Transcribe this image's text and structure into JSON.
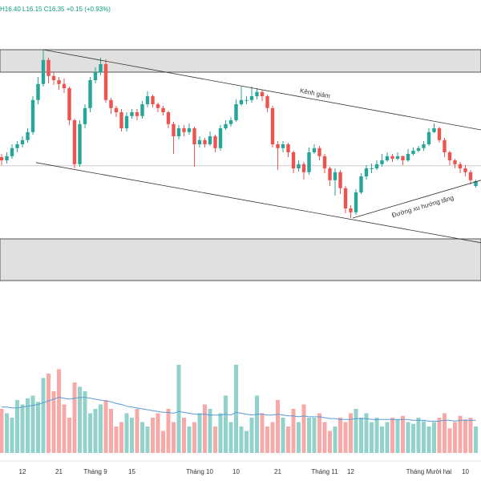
{
  "chart_data": {
    "type": "candlestick",
    "header": "H16.40 L16.15 C16.35 +0.15 (+0.93%)",
    "categories": [
      null,
      null,
      null,
      null,
      "12",
      null,
      null,
      null,
      null,
      null,
      null,
      "21",
      null,
      null,
      null,
      null,
      null,
      null,
      "Tháng 9",
      null,
      null,
      null,
      null,
      null,
      null,
      "15",
      null,
      null,
      null,
      null,
      null,
      null,
      null,
      null,
      null,
      null,
      null,
      null,
      "Tháng 10",
      null,
      null,
      null,
      null,
      null,
      null,
      "10",
      null,
      null,
      null,
      null,
      null,
      null,
      null,
      "21",
      null,
      null,
      null,
      null,
      null,
      null,
      null,
      null,
      "Tháng 11",
      null,
      null,
      null,
      null,
      "12",
      null,
      null,
      null,
      null,
      null,
      null,
      null,
      null,
      null,
      null,
      null,
      null,
      null,
      null,
      "Tháng Mười hai",
      null,
      null,
      null,
      null,
      null,
      null,
      "10",
      null,
      null
    ],
    "open": [
      17.1,
      17.0,
      17.13,
      17.38,
      17.5,
      17.63,
      17.88,
      18.88,
      19.38,
      20.13,
      19.63,
      19.5,
      19.38,
      19.25,
      18.25,
      16.88,
      18.13,
      18.63,
      19.5,
      19.75,
      20.0,
      18.88,
      18.63,
      18.5,
      18.0,
      18.38,
      18.5,
      18.38,
      18.75,
      19.0,
      18.75,
      18.63,
      18.5,
      18.13,
      17.75,
      18.0,
      17.88,
      18.0,
      17.5,
      17.63,
      17.5,
      17.75,
      17.38,
      18.0,
      18.13,
      18.25,
      18.75,
      18.88,
      18.88,
      19.0,
      19.13,
      19.0,
      18.63,
      17.5,
      17.38,
      17.5,
      17.25,
      16.75,
      16.88,
      16.63,
      17.25,
      17.38,
      17.13,
      16.75,
      16.38,
      16.63,
      16.13,
      15.5,
      15.38,
      16.0,
      16.5,
      16.75,
      16.75,
      16.88,
      17.0,
      17.13,
      17.05,
      17.13,
      17.0,
      17.2,
      17.3,
      17.38,
      17.5,
      17.88,
      18.0,
      17.63,
      17.25,
      17.0,
      16.88,
      16.75,
      16.63,
      16.2
    ],
    "high": [
      17.2,
      17.25,
      17.5,
      17.6,
      17.75,
      18.0,
      19.0,
      19.6,
      20.45,
      20.2,
      19.75,
      19.6,
      19.55,
      19.3,
      18.3,
      18.25,
      18.75,
      19.6,
      19.9,
      20.2,
      20.15,
      18.95,
      18.7,
      18.6,
      18.5,
      18.6,
      18.6,
      18.85,
      19.15,
      19.05,
      18.8,
      18.7,
      18.55,
      18.2,
      18.1,
      18.1,
      18.15,
      18.05,
      17.75,
      17.7,
      17.9,
      17.8,
      18.1,
      18.25,
      18.35,
      18.9,
      19.3,
      19.0,
      19.3,
      19.25,
      19.2,
      19.05,
      18.7,
      17.6,
      17.6,
      17.55,
      17.3,
      17.0,
      16.95,
      17.4,
      17.5,
      17.45,
      17.2,
      16.8,
      16.75,
      16.7,
      16.2,
      15.6,
      16.1,
      16.6,
      16.85,
      16.9,
      17.0,
      17.2,
      17.25,
      17.2,
      17.25,
      17.15,
      17.35,
      17.4,
      17.45,
      17.6,
      18.0,
      18.15,
      18.05,
      17.7,
      17.3,
      17.05,
      16.95,
      16.85,
      16.7,
      16.4
    ],
    "low": [
      16.85,
      16.9,
      17.05,
      17.25,
      17.4,
      17.55,
      17.8,
      18.75,
      19.3,
      19.4,
      19.35,
      19.2,
      19.1,
      18.1,
      16.75,
      16.8,
      18.0,
      18.5,
      19.4,
      19.65,
      18.8,
      18.45,
      18.35,
      17.9,
      17.9,
      18.3,
      18.25,
      18.3,
      18.65,
      18.65,
      18.5,
      18.4,
      18.0,
      17.2,
      17.65,
      17.75,
      17.8,
      16.8,
      17.4,
      17.4,
      17.45,
      17.25,
      17.3,
      17.95,
      18.05,
      18.2,
      18.7,
      18.75,
      18.8,
      18.9,
      18.85,
      18.5,
      17.4,
      16.7,
      17.25,
      17.1,
      16.6,
      16.65,
      16.4,
      16.55,
      17.2,
      17.0,
      16.6,
      16.2,
      15.9,
      15.95,
      15.35,
      15.2,
      15.3,
      15.95,
      16.4,
      16.6,
      16.7,
      16.8,
      16.95,
      16.95,
      17.0,
      16.85,
      16.95,
      17.15,
      17.25,
      17.3,
      17.45,
      17.85,
      17.55,
      17.1,
      16.85,
      16.75,
      16.6,
      16.5,
      16.25,
      16.15
    ],
    "close": [
      17.0,
      17.13,
      17.38,
      17.5,
      17.63,
      17.88,
      18.88,
      19.38,
      20.13,
      19.63,
      19.5,
      19.38,
      19.25,
      18.25,
      16.88,
      18.13,
      18.63,
      19.5,
      19.75,
      20.0,
      18.88,
      18.63,
      18.5,
      18.0,
      18.38,
      18.5,
      18.38,
      18.75,
      19.0,
      18.75,
      18.63,
      18.5,
      18.13,
      17.75,
      18.0,
      17.88,
      18.0,
      17.5,
      17.63,
      17.5,
      17.75,
      17.38,
      18.0,
      18.13,
      18.25,
      18.75,
      18.88,
      18.88,
      19.0,
      19.13,
      19.0,
      18.63,
      17.5,
      17.38,
      17.5,
      17.25,
      16.75,
      16.88,
      16.63,
      17.25,
      17.38,
      17.13,
      16.75,
      16.38,
      16.63,
      16.13,
      15.5,
      15.38,
      16.0,
      16.5,
      16.75,
      16.75,
      16.88,
      17.0,
      17.13,
      17.05,
      17.13,
      17.0,
      17.2,
      17.3,
      17.38,
      17.5,
      17.88,
      18.0,
      17.63,
      17.25,
      17.0,
      16.88,
      16.75,
      16.63,
      16.38,
      16.35
    ],
    "volume": [
      50,
      45,
      40,
      60,
      55,
      62,
      65,
      58,
      85,
      90,
      70,
      95,
      55,
      40,
      80,
      75,
      70,
      45,
      50,
      55,
      60,
      50,
      30,
      35,
      45,
      40,
      50,
      35,
      30,
      40,
      45,
      25,
      50,
      35,
      100,
      40,
      30,
      35,
      45,
      55,
      50,
      30,
      45,
      65,
      35,
      100,
      30,
      25,
      40,
      65,
      45,
      30,
      35,
      60,
      40,
      30,
      50,
      35,
      55,
      40,
      40,
      45,
      35,
      25,
      30,
      40,
      35,
      45,
      50,
      40,
      45,
      35,
      40,
      30,
      35,
      40,
      38,
      42,
      35,
      33,
      40,
      36,
      30,
      35,
      40,
      45,
      28,
      35,
      42,
      38,
      40,
      30
    ],
    "volume_ma": [
      52,
      52,
      51,
      51,
      52,
      53,
      54,
      55,
      57,
      59,
      61,
      63,
      62,
      61,
      62,
      63,
      63,
      62,
      61,
      60,
      59,
      58,
      56,
      55,
      53,
      52,
      51,
      50,
      49,
      48,
      47,
      46,
      46,
      45,
      47,
      46,
      45,
      44,
      44,
      44,
      43,
      43,
      43,
      44,
      43,
      46,
      45,
      44,
      43,
      44,
      44,
      43,
      43,
      44,
      43,
      42,
      42,
      41,
      42,
      41,
      41,
      41,
      40,
      39,
      39,
      38,
      38,
      38,
      39,
      39,
      39,
      38,
      38,
      38,
      38,
      38,
      38,
      38,
      38,
      37,
      37,
      37,
      36,
      36,
      36,
      37,
      37,
      36,
      37,
      37,
      37,
      37
    ],
    "ylim": [
      13,
      22
    ],
    "y2lim": [
      0,
      100
    ],
    "up_color": "#26a69a",
    "down_color": "#ef5350",
    "ma_color": "#5b9bd5",
    "price_line": 16.83,
    "zones": [
      [
        19.75,
        20.45
      ],
      [
        13.25,
        14.55
      ]
    ],
    "lines": [
      {
        "label": "Kênh giảm",
        "x": [
          8,
          92
        ],
        "y": [
          20.45,
          17.95
        ]
      },
      {
        "x": [
          6.6,
          92
        ],
        "y": [
          16.93,
          14.43
        ]
      },
      {
        "label": "Đường xu hướng tăng",
        "x": [
          67.4,
          92
        ],
        "y": [
          15.2,
          16.38
        ]
      }
    ]
  }
}
